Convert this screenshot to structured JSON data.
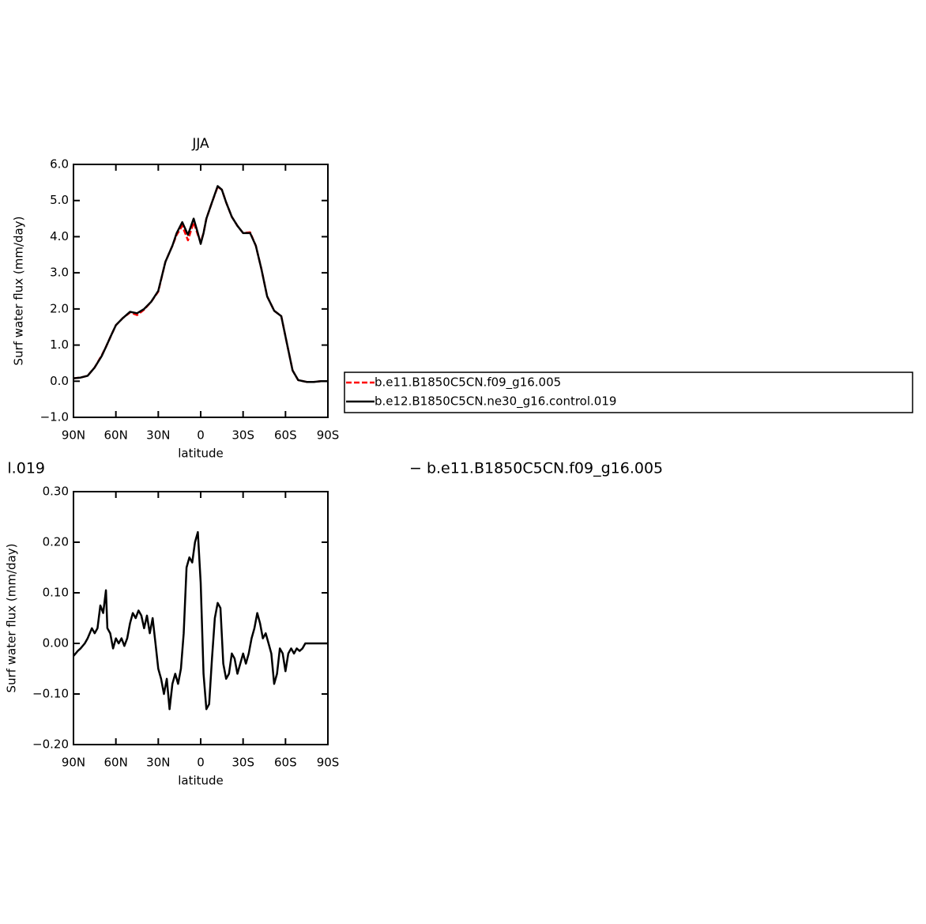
{
  "chart_data": [
    {
      "type": "line",
      "title": "JJA",
      "xlabel": "latitude",
      "ylabel": "Surf  water flux (mm/day)",
      "x": [
        90,
        85,
        80,
        75,
        70,
        67,
        63,
        60,
        55,
        50,
        45,
        40,
        35,
        30,
        25,
        20,
        17,
        13,
        9,
        5,
        2,
        0,
        -2,
        -4,
        -8,
        -12,
        -15,
        -18,
        -22,
        -26,
        -30,
        -35,
        -39,
        -43,
        -47,
        -52,
        -57,
        -61,
        -65,
        -69,
        -75,
        -80,
        -85,
        -90
      ],
      "series": [
        {
          "name": "b.e11.B1850C5CN.f09_g16.005",
          "color": "#ff0000",
          "dash": true,
          "values": [
            0.08,
            0.1,
            0.15,
            0.38,
            0.72,
            0.95,
            1.3,
            1.55,
            1.75,
            1.9,
            1.83,
            1.98,
            2.2,
            2.48,
            3.3,
            3.75,
            4.05,
            4.3,
            3.9,
            4.4,
            4.05,
            3.85,
            4.1,
            4.5,
            4.95,
            5.38,
            5.3,
            4.95,
            4.55,
            4.3,
            4.1,
            4.12,
            3.75,
            3.1,
            2.35,
            1.95,
            1.8,
            1.05,
            0.3,
            0.03,
            -0.02,
            -0.02,
            0,
            0
          ]
        },
        {
          "name": "b.e12.B1850C5CN.ne30_g16.control.019",
          "color": "#000000",
          "dash": false,
          "values": [
            0.08,
            0.1,
            0.15,
            0.38,
            0.7,
            0.95,
            1.3,
            1.55,
            1.75,
            1.92,
            1.88,
            2.0,
            2.2,
            2.5,
            3.3,
            3.75,
            4.1,
            4.4,
            4.05,
            4.5,
            4.1,
            3.8,
            4.1,
            4.5,
            4.95,
            5.4,
            5.3,
            4.95,
            4.55,
            4.3,
            4.1,
            4.1,
            3.75,
            3.1,
            2.35,
            1.95,
            1.8,
            1.05,
            0.3,
            0.03,
            -0.02,
            -0.02,
            0,
            0
          ]
        }
      ],
      "xlim": [
        90,
        -90
      ],
      "xticks": [
        {
          "value": 90,
          "label": "90N"
        },
        {
          "value": 60,
          "label": "60N"
        },
        {
          "value": 30,
          "label": "30N"
        },
        0,
        {
          "value": -30,
          "label": "30S"
        },
        {
          "value": -60,
          "label": "60S"
        },
        {
          "value": -90,
          "label": "90S"
        }
      ],
      "ylim": [
        -1,
        6
      ],
      "yticks": [
        {
          "value": 6,
          "label": "6.0"
        },
        {
          "value": 5,
          "label": "5.0"
        },
        {
          "value": 4,
          "label": "4.0"
        },
        {
          "value": 3,
          "label": "3.0"
        },
        {
          "value": 2,
          "label": "2.0"
        },
        {
          "value": 1,
          "label": "1.0"
        },
        {
          "value": 0,
          "label": "0.0"
        },
        {
          "value": -1,
          "label": "−1.0"
        }
      ],
      "legend": "right"
    },
    {
      "type": "line",
      "xlabel": "latitude",
      "ylabel": "Surf  water flux (mm/day)",
      "annotations": [
        "l.019",
        "− b.e11.B1850C5CN.f09_g16.005"
      ],
      "x": [
        90,
        87,
        85,
        82,
        80,
        77,
        75,
        73,
        71,
        69,
        67,
        66,
        64,
        62,
        60,
        58,
        56,
        54,
        52,
        50,
        48,
        46,
        44,
        42,
        40,
        38,
        36,
        34,
        32,
        30,
        28,
        26,
        24,
        22,
        20,
        18,
        16,
        14,
        12,
        10,
        8,
        6,
        4,
        2,
        0,
        -2,
        -4,
        -6,
        -8,
        -10,
        -12,
        -14,
        -16,
        -18,
        -20,
        -22,
        -24,
        -26,
        -28,
        -30,
        -32,
        -34,
        -36,
        -38,
        -40,
        -42,
        -44,
        -46,
        -48,
        -50,
        -52,
        -54,
        -56,
        -58,
        -60,
        -62,
        -64,
        -66,
        -68,
        -70,
        -72,
        -74,
        -80,
        -90
      ],
      "series": [
        {
          "color": "#000000",
          "values": [
            -0.025,
            -0.015,
            -0.01,
            0.0,
            0.01,
            0.03,
            0.02,
            0.03,
            0.075,
            0.06,
            0.105,
            0.03,
            0.02,
            -0.01,
            0.01,
            0.0,
            0.01,
            -0.005,
            0.01,
            0.04,
            0.06,
            0.05,
            0.065,
            0.055,
            0.03,
            0.055,
            0.02,
            0.05,
            0.0,
            -0.05,
            -0.07,
            -0.1,
            -0.07,
            -0.13,
            -0.08,
            -0.06,
            -0.08,
            -0.05,
            0.02,
            0.15,
            0.17,
            0.16,
            0.2,
            0.22,
            0.12,
            -0.06,
            -0.13,
            -0.12,
            -0.03,
            0.05,
            0.08,
            0.07,
            -0.04,
            -0.07,
            -0.06,
            -0.02,
            -0.03,
            -0.06,
            -0.04,
            -0.02,
            -0.04,
            -0.02,
            0.01,
            0.03,
            0.06,
            0.04,
            0.01,
            0.02,
            0.0,
            -0.02,
            -0.08,
            -0.06,
            -0.01,
            -0.02,
            -0.055,
            -0.02,
            -0.01,
            -0.02,
            -0.01,
            -0.015,
            -0.01,
            0.0,
            0.0,
            0.0
          ]
        }
      ],
      "xlim": [
        90,
        -90
      ],
      "xticks": [
        {
          "value": 90,
          "label": "90N"
        },
        {
          "value": 60,
          "label": "60N"
        },
        {
          "value": 30,
          "label": "30N"
        },
        0,
        {
          "value": -30,
          "label": "30S"
        },
        {
          "value": -60,
          "label": "60S"
        },
        {
          "value": -90,
          "label": "90S"
        }
      ],
      "ylim": [
        -0.2,
        0.3
      ],
      "yticks": [
        {
          "value": 0.3,
          "label": "0.30"
        },
        {
          "value": 0.2,
          "label": "0.20"
        },
        {
          "value": 0.1,
          "label": "0.10"
        },
        {
          "value": 0,
          "label": "0.00"
        },
        {
          "value": -0.1,
          "label": "−0.10"
        },
        {
          "value": -0.2,
          "label": "−0.20"
        }
      ]
    }
  ]
}
